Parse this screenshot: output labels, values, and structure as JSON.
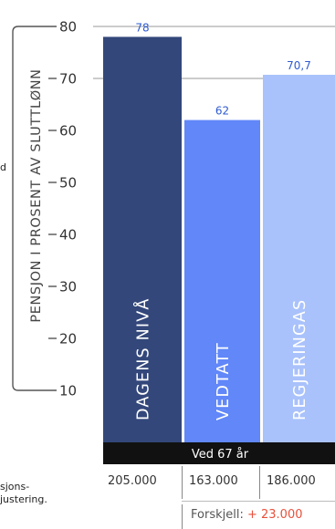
{
  "chart_data": {
    "type": "bar",
    "ylabel": "PENSJON I PROSENT AV SLUTTLØNN",
    "ylim": [
      0,
      80
    ],
    "y_ticks": [
      10,
      20,
      30,
      40,
      50,
      60,
      70,
      80
    ],
    "categories": [
      "DAGENS NIVÅ",
      "VEDTATT",
      "REGJERINGAS"
    ],
    "values": [
      78,
      62,
      70.7
    ],
    "value_labels": [
      "78",
      "62",
      "70,7"
    ],
    "bar_colors": [
      "#33477a",
      "#6187f8",
      "#a9c2fb"
    ],
    "label_colors": [
      "#2f5bd0",
      "#2f5bd0",
      "#2f5bd0"
    ],
    "gridlines_at": [
      80,
      70
    ]
  },
  "footer": {
    "band_label": "Ved 67 år",
    "amounts": [
      "205.000",
      "163.000",
      "186.000"
    ],
    "difference_label": "Forskjell:",
    "difference_value": "+ 23.000"
  },
  "cut_text": {
    "left_mid": "d",
    "left_bottom_1": "sjons-",
    "left_bottom_2": "justering."
  },
  "colors": {
    "axis": "#555555",
    "gridline": "#bbbbbb",
    "band": "#111111",
    "band_text": "#ffffff",
    "bar_text": "#ffffff",
    "difference": "#e8513b"
  }
}
